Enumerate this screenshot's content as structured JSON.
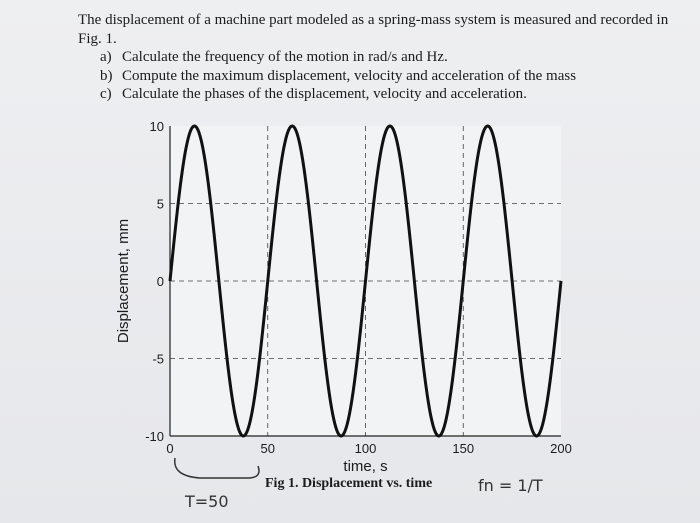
{
  "problem": {
    "intro": "The displacement of a machine part modeled as a spring-mass system is measured and recorded in Fig. 1.",
    "parts": [
      {
        "label": "a)",
        "text": "Calculate the frequency of the motion in rad/s and Hz."
      },
      {
        "label": "b)",
        "text": "Compute the maximum displacement, velocity and acceleration of the mass"
      },
      {
        "label": "c)",
        "text": "Calculate the phases of the displacement, velocity and acceleration."
      }
    ]
  },
  "caption": "Fig 1. Displacement vs. time",
  "handwriting": {
    "period_note": "T=50",
    "freq_note": "fn = 1/T"
  },
  "chart_data": {
    "type": "line",
    "xlabel": "time, s",
    "ylabel": "Displacement, mm",
    "xlim": [
      0,
      200
    ],
    "ylim": [
      -10,
      10
    ],
    "xticks": [
      0,
      50,
      100,
      150,
      200
    ],
    "yticks": [
      -10,
      -5,
      0,
      5,
      10
    ],
    "grid": "dashed",
    "series": [
      {
        "amplitude": 10,
        "period": 50,
        "phase_shift": 0,
        "function": "10*sin(2*pi*t/50)",
        "color": "#111111"
      }
    ]
  }
}
